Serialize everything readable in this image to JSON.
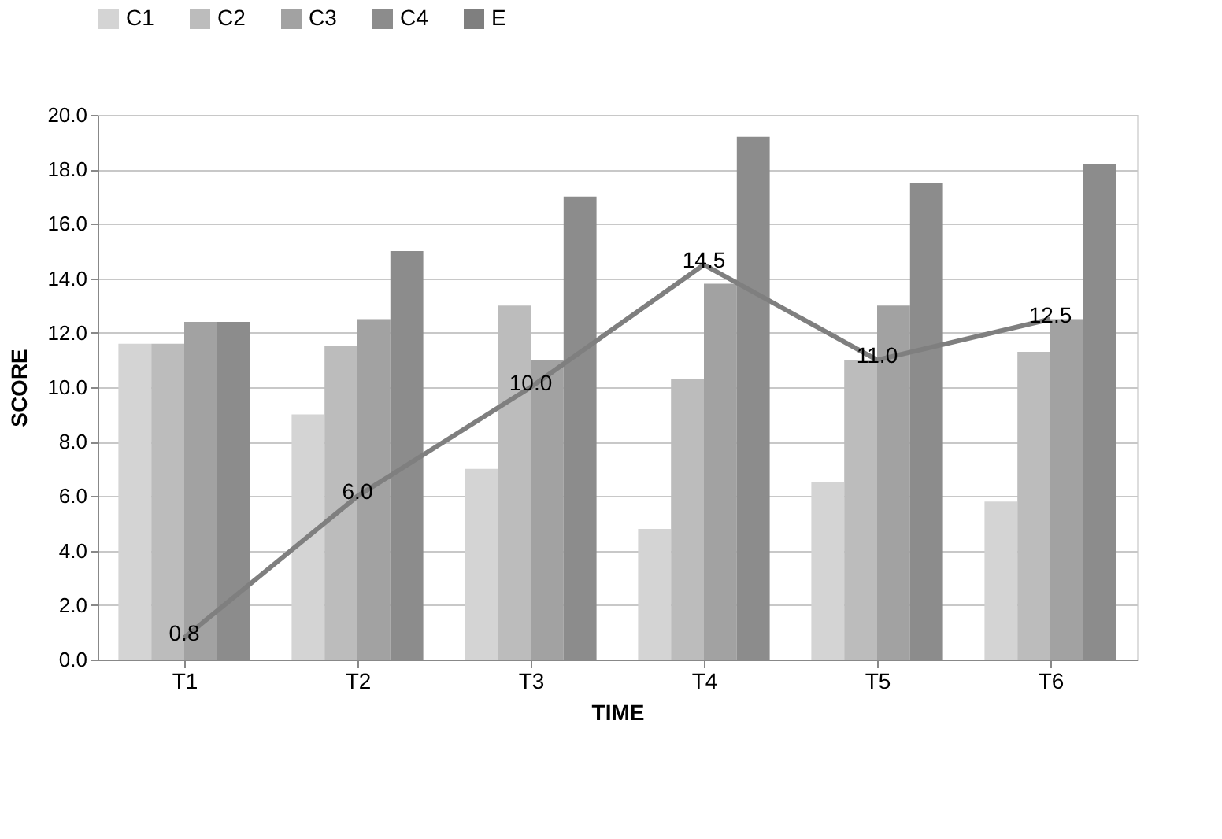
{
  "chart_data": {
    "type": "bar",
    "xlabel": "TIME",
    "ylabel": "SCORE",
    "categories": [
      "T1",
      "T2",
      "T3",
      "T4",
      "T5",
      "T6"
    ],
    "series": [
      {
        "name": "C1",
        "color": "#d4d4d4",
        "values": [
          11.6,
          9.0,
          7.0,
          4.8,
          6.5,
          5.8
        ]
      },
      {
        "name": "C2",
        "color": "#bcbcbc",
        "values": [
          11.6,
          11.5,
          13.0,
          10.3,
          11.0,
          11.3
        ]
      },
      {
        "name": "C3",
        "color": "#a2a2a2",
        "values": [
          12.4,
          12.5,
          11.0,
          13.8,
          13.0,
          12.5
        ]
      },
      {
        "name": "C4",
        "color": "#8c8c8c",
        "values": [
          12.4,
          15.0,
          17.0,
          19.2,
          17.5,
          18.2
        ]
      },
      {
        "name": "E",
        "type": "line",
        "color": "#7f7f7f",
        "values": [
          0.8,
          6.0,
          10.0,
          14.5,
          11.0,
          12.5
        ],
        "value_labels": [
          "0.8",
          "6.0",
          "10.0",
          "14.5",
          "11.0",
          "12.5"
        ]
      }
    ],
    "ylim": [
      0,
      20
    ],
    "yticks": [
      {
        "value": 0,
        "label": "0.0"
      },
      {
        "value": 2,
        "label": "2.0"
      },
      {
        "value": 4,
        "label": "4.0"
      },
      {
        "value": 6,
        "label": "6.0"
      },
      {
        "value": 8,
        "label": "8.0"
      },
      {
        "value": 10,
        "label": "10.0"
      },
      {
        "value": 12,
        "label": "12.0"
      },
      {
        "value": 14,
        "label": "14.0"
      },
      {
        "value": 16,
        "label": "16.0"
      },
      {
        "value": 18,
        "label": "18.0"
      },
      {
        "value": 20,
        "label": "20.0"
      }
    ],
    "grid": "y",
    "legend": "top",
    "marker": "none",
    "line_style": "solid"
  }
}
